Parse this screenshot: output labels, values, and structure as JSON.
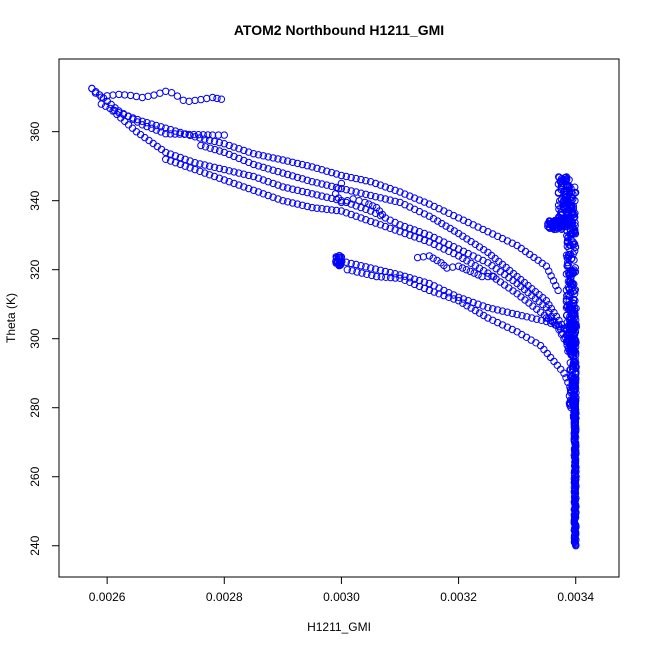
{
  "chart_data": {
    "type": "scatter",
    "title": "ATOM2 Northbound H1211_GMI",
    "xlabel": "H1211_GMI",
    "ylabel": "Theta (K)",
    "xlim": [
      0.00254,
      0.00345
    ],
    "ylim": [
      235,
      377
    ],
    "xticks": [
      0.0026,
      0.0028,
      0.003,
      0.0032,
      0.0034
    ],
    "xtick_labels": [
      "0.0026",
      "0.0028",
      "0.0030",
      "0.0032",
      "0.0034"
    ],
    "yticks": [
      240,
      260,
      280,
      300,
      320,
      340,
      360
    ],
    "ytick_labels": [
      "240",
      "260",
      "280",
      "300",
      "320",
      "340",
      "360"
    ],
    "grid": false,
    "legend": "none",
    "marker": "open-circle",
    "point_color": "#0000ff",
    "series": [
      {
        "path_segments": [
          [
            [
              0.002574,
              372.5
            ],
            [
              0.00258,
              371.2
            ],
            [
              0.00259,
              370.0
            ],
            [
              0.0026,
              370.4
            ],
            [
              0.00262,
              370.8
            ],
            [
              0.00264,
              370.5
            ],
            [
              0.00266,
              369.9
            ],
            [
              0.00268,
              370.6
            ],
            [
              0.0027,
              371.7
            ],
            [
              0.00271,
              371.3
            ],
            [
              0.00272,
              370.3
            ],
            [
              0.00273,
              369.1
            ],
            [
              0.00274,
              368.8
            ],
            [
              0.00276,
              369.3
            ],
            [
              0.00278,
              369.9
            ],
            [
              0.002795,
              369.4
            ]
          ],
          [
            [
              0.002574,
              372.5
            ],
            [
              0.00262,
              366.0
            ],
            [
              0.00266,
              362.0
            ],
            [
              0.0027,
              359.4
            ],
            [
              0.00274,
              359.2
            ],
            [
              0.00278,
              359.0
            ],
            [
              0.0028,
              359.0
            ]
          ],
          [
            [
              0.00259,
              368.0
            ],
            [
              0.00262,
              365.5
            ],
            [
              0.00266,
              363.0
            ],
            [
              0.0027,
              361.0
            ],
            [
              0.00275,
              358.5
            ],
            [
              0.0028,
              356.5
            ],
            [
              0.00285,
              353.6
            ],
            [
              0.0029,
              351.8
            ],
            [
              0.00295,
              349.8
            ],
            [
              0.003,
              347.3
            ],
            [
              0.00305,
              345.5
            ],
            [
              0.0031,
              342.5
            ],
            [
              0.00315,
              339.0
            ],
            [
              0.0032,
              335.0
            ],
            [
              0.00325,
              331.0
            ],
            [
              0.0033,
              327.0
            ],
            [
              0.00335,
              321.0
            ],
            [
              0.00337,
              314.0
            ]
          ],
          [
            [
              0.00261,
              366.0
            ],
            [
              0.00265,
              360.0
            ],
            [
              0.0027,
              354.0
            ],
            [
              0.00275,
              351.0
            ],
            [
              0.0028,
              349.0
            ],
            [
              0.00285,
              347.0
            ],
            [
              0.0029,
              344.0
            ],
            [
              0.00295,
              342.0
            ],
            [
              0.003,
              340.0
            ],
            [
              0.00305,
              337.0
            ],
            [
              0.0031,
              333.0
            ],
            [
              0.00315,
              330.0
            ],
            [
              0.0032,
              326.0
            ],
            [
              0.00325,
              322.0
            ],
            [
              0.0033,
              316.0
            ],
            [
              0.00335,
              309.0
            ],
            [
              0.00338,
              300.0
            ]
          ],
          [
            [
              0.00276,
              356.0
            ],
            [
              0.0028,
              354.0
            ],
            [
              0.00285,
              350.5
            ],
            [
              0.0029,
              348.0
            ],
            [
              0.00295,
              345.5
            ],
            [
              0.003,
              343.5
            ],
            [
              0.00305,
              341.5
            ],
            [
              0.0031,
              339.5
            ],
            [
              0.00315,
              335.5
            ],
            [
              0.0032,
              330.5
            ],
            [
              0.00325,
              325.0
            ],
            [
              0.0033,
              318.0
            ],
            [
              0.00335,
              311.0
            ],
            [
              0.00338,
              303.0
            ]
          ],
          [
            [
              0.0027,
              352.0
            ],
            [
              0.00275,
              349.0
            ],
            [
              0.0028,
              346.0
            ],
            [
              0.00285,
              343.0
            ],
            [
              0.0029,
              340.0
            ],
            [
              0.00295,
              338.0
            ],
            [
              0.003,
              337.0
            ],
            [
              0.00305,
              334.0
            ],
            [
              0.0031,
              331.0
            ],
            [
              0.00315,
              328.0
            ],
            [
              0.0032,
              324.0
            ],
            [
              0.00325,
              319.0
            ],
            [
              0.0033,
              313.0
            ],
            [
              0.00336,
              305.0
            ]
          ],
          [
            [
              0.003,
              322.5
            ],
            [
              0.00305,
              320.5
            ],
            [
              0.0031,
              318.5
            ],
            [
              0.00315,
              316.0
            ],
            [
              0.0032,
              312.0
            ],
            [
              0.00325,
              309.0
            ],
            [
              0.0033,
              307.0
            ],
            [
              0.00335,
              305.0
            ],
            [
              0.00338,
              303.0
            ]
          ],
          [
            [
              0.00301,
              320.0
            ],
            [
              0.00306,
              318.0
            ],
            [
              0.0031,
              317.5
            ],
            [
              0.00315,
              314.0
            ],
            [
              0.0032,
              311.0
            ],
            [
              0.00325,
              306.0
            ],
            [
              0.0033,
              302.0
            ],
            [
              0.00334,
              298.0
            ],
            [
              0.00338,
              290.0
            ],
            [
              0.0034,
              282.0
            ]
          ],
          [
            [
              0.003,
              345.0
            ],
            [
              0.00299,
              342.0
            ],
            [
              0.003,
              339.5
            ],
            [
              0.00302,
              340.5
            ],
            [
              0.00304,
              339.5
            ],
            [
              0.00306,
              338.0
            ],
            [
              0.00307,
              336.0
            ]
          ],
          [
            [
              0.00313,
              323.5
            ],
            [
              0.00315,
              324.0
            ],
            [
              0.00317,
              322.0
            ],
            [
              0.00318,
              320.5
            ],
            [
              0.0032,
              321.0
            ],
            [
              0.00322,
              319.5
            ],
            [
              0.00324,
              318.0
            ],
            [
              0.00326,
              318.0
            ]
          ],
          [
            [
              0.00335,
              306.0
            ],
            [
              0.00337,
              304.0
            ],
            [
              0.00339,
              298.0
            ],
            [
              0.0034,
              296.0
            ]
          ]
        ],
        "clusters": [
          {
            "x": 0.002995,
            "y": 322.5,
            "dx": 6e-06,
            "dy": 1.6,
            "n": 28
          },
          {
            "x": 0.00337,
            "y": 333.0,
            "dx": 1.8e-05,
            "dy": 1.3,
            "n": 60
          },
          {
            "x": 0.00338,
            "y": 340.0,
            "dx": 1e-05,
            "dy": 7.0,
            "n": 90
          },
          {
            "x": 0.003392,
            "y": 320.0,
            "dx": 8e-06,
            "dy": 24.0,
            "n": 220
          },
          {
            "x": 0.003395,
            "y": 295.0,
            "dx": 6e-06,
            "dy": 15.0,
            "n": 120
          },
          {
            "x": 0.003398,
            "y": 282.0,
            "dx": 2e-06,
            "dy": 6.0,
            "n": 45
          }
        ],
        "column": {
          "x": 0.003399,
          "dx": 1.5e-06,
          "ymin": 240.0,
          "ymax": 282.0,
          "n": 150
        }
      }
    ]
  }
}
